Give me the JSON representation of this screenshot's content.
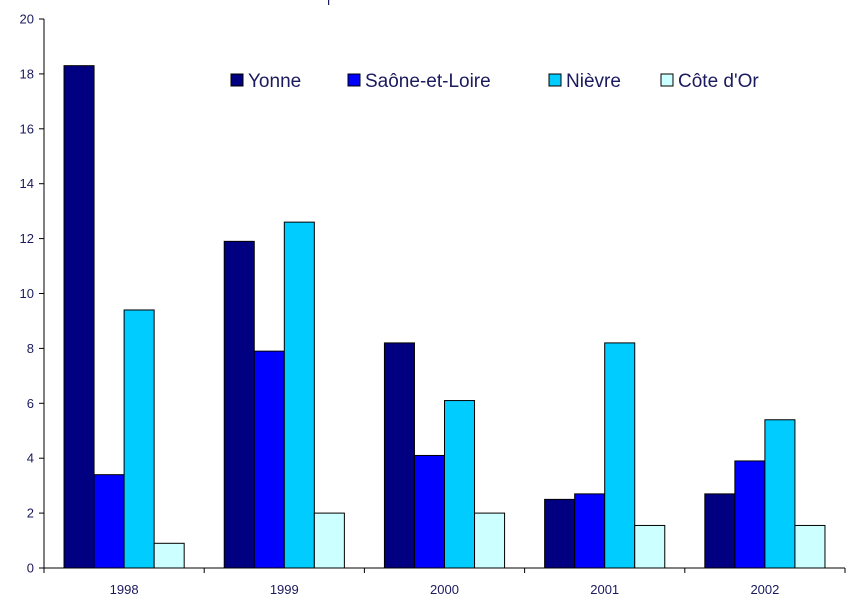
{
  "chart_data": {
    "type": "bar",
    "categories": [
      "1998",
      "1999",
      "2000",
      "2001",
      "2002"
    ],
    "series": [
      {
        "name": "Yonne",
        "color": "#000080",
        "values": [
          18.3,
          11.9,
          8.2,
          2.5,
          2.7
        ]
      },
      {
        "name": "Saône-et-Loire",
        "color": "#0000FF",
        "values": [
          3.4,
          7.9,
          4.1,
          2.7,
          3.9
        ]
      },
      {
        "name": "Nièvre",
        "color": "#00CCFF",
        "values": [
          9.4,
          12.6,
          6.1,
          8.2,
          5.4
        ]
      },
      {
        "name": "Côte d'Or",
        "color": "#CCFFFF",
        "values": [
          0.9,
          2.0,
          2.0,
          1.55,
          1.55
        ]
      }
    ],
    "ylim": [
      0,
      20
    ],
    "yticks": [
      0,
      2,
      4,
      6,
      8,
      10,
      12,
      14,
      16,
      18,
      20
    ],
    "ytick_labels": [
      "0",
      "2",
      "4",
      "6",
      "8",
      "10",
      "12",
      "14",
      "16",
      "18",
      "20"
    ],
    "grid": false,
    "legend_position": "top-right"
  }
}
